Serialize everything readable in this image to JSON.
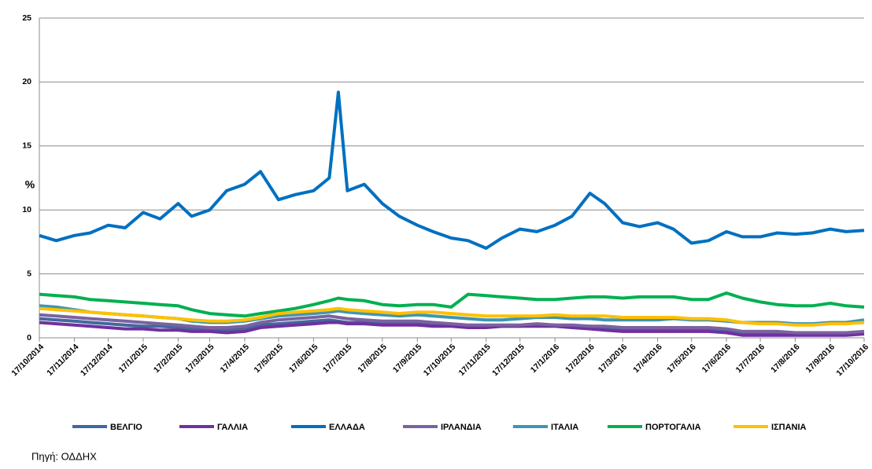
{
  "chart_data": {
    "type": "line",
    "y_label": "%",
    "source": "Πηγή:  ΟΔΔΗΧ",
    "x": [
      "17/10/2014",
      "1/11/2014",
      "17/11/2014",
      "1/12/2014",
      "17/12/2014",
      "1/1/2015",
      "17/1/2015",
      "1/2/2015",
      "17/2/2015",
      "1/3/2015",
      "17/3/2015",
      "1/4/2015",
      "17/4/2015",
      "1/5/2015",
      "17/5/2015",
      "1/6/2015",
      "17/6/2015",
      "1/7/2015",
      "9/7/2015",
      "17/7/2015",
      "1/8/2015",
      "17/8/2015",
      "1/9/2015",
      "17/9/2015",
      "1/10/2015",
      "17/10/2015",
      "1/11/2015",
      "17/11/2015",
      "1/12/2015",
      "17/12/2015",
      "1/1/2016",
      "17/1/2016",
      "1/2/2016",
      "17/2/2016",
      "1/3/2016",
      "17/3/2016",
      "1/4/2016",
      "17/4/2016",
      "1/5/2016",
      "17/5/2016",
      "1/6/2016",
      "17/6/2016",
      "1/7/2016",
      "17/7/2016",
      "1/8/2016",
      "17/8/2016",
      "1/9/2016",
      "17/9/2016",
      "1/10/2016",
      "17/10/2016"
    ],
    "series": [
      {
        "name": "ΒΕΛΓΙΟ",
        "color": "#41699c",
        "values": [
          1.5,
          1.4,
          1.3,
          1.2,
          1.1,
          1.0,
          0.9,
          0.9,
          0.8,
          0.7,
          0.6,
          0.6,
          0.7,
          1.0,
          1.1,
          1.2,
          1.3,
          1.4,
          1.3,
          1.2,
          1.2,
          1.1,
          1.1,
          1.1,
          1.0,
          1.0,
          0.9,
          0.9,
          0.9,
          0.9,
          1.0,
          1.0,
          0.9,
          0.9,
          0.8,
          0.7,
          0.7,
          0.7,
          0.7,
          0.6,
          0.6,
          0.5,
          0.3,
          0.3,
          0.3,
          0.3,
          0.3,
          0.3,
          0.3,
          0.4
        ]
      },
      {
        "name": "ΓΑΛΛΙΑ",
        "color": "#7030a0",
        "values": [
          1.2,
          1.1,
          1.0,
          0.9,
          0.8,
          0.7,
          0.7,
          0.6,
          0.6,
          0.5,
          0.5,
          0.4,
          0.5,
          0.8,
          0.9,
          1.0,
          1.1,
          1.2,
          1.2,
          1.1,
          1.1,
          1.0,
          1.0,
          1.0,
          0.9,
          0.9,
          0.8,
          0.8,
          0.9,
          0.9,
          0.9,
          0.9,
          0.8,
          0.7,
          0.6,
          0.5,
          0.5,
          0.5,
          0.5,
          0.5,
          0.5,
          0.4,
          0.2,
          0.2,
          0.2,
          0.2,
          0.2,
          0.2,
          0.2,
          0.3
        ]
      },
      {
        "name": "ΕΛΛΑΔΑ",
        "color": "#0070c0",
        "values": [
          8.0,
          7.6,
          8.0,
          8.2,
          8.8,
          8.6,
          9.8,
          9.3,
          10.5,
          9.5,
          10.0,
          11.5,
          12.0,
          13.0,
          10.8,
          11.2,
          11.5,
          12.5,
          19.2,
          11.5,
          12.0,
          10.5,
          9.5,
          8.8,
          8.3,
          7.8,
          7.6,
          7.0,
          7.8,
          8.5,
          8.3,
          8.8,
          9.5,
          11.3,
          10.5,
          9.0,
          8.7,
          9.0,
          8.5,
          7.4,
          7.6,
          8.3,
          7.9,
          7.9,
          8.2,
          8.1,
          8.2,
          8.5,
          8.3,
          8.4
        ]
      },
      {
        "name": "ΙΡΛΑΝΔΙΑ",
        "color": "#7b62a0",
        "values": [
          1.8,
          1.7,
          1.6,
          1.5,
          1.4,
          1.3,
          1.2,
          1.1,
          1.0,
          0.9,
          0.8,
          0.8,
          0.9,
          1.2,
          1.4,
          1.5,
          1.6,
          1.7,
          1.6,
          1.5,
          1.4,
          1.3,
          1.3,
          1.3,
          1.2,
          1.1,
          1.0,
          1.0,
          1.0,
          1.0,
          1.1,
          1.0,
          1.0,
          0.9,
          0.9,
          0.8,
          0.8,
          0.8,
          0.8,
          0.8,
          0.8,
          0.7,
          0.5,
          0.5,
          0.5,
          0.4,
          0.4,
          0.4,
          0.4,
          0.5
        ]
      },
      {
        "name": "ΙΤΑΛΙΑ",
        "color": "#3f96b0",
        "values": [
          2.5,
          2.4,
          2.2,
          2.0,
          1.9,
          1.8,
          1.7,
          1.6,
          1.5,
          1.3,
          1.2,
          1.2,
          1.3,
          1.5,
          1.7,
          1.8,
          1.9,
          2.0,
          2.1,
          2.0,
          1.9,
          1.8,
          1.7,
          1.8,
          1.7,
          1.6,
          1.5,
          1.4,
          1.4,
          1.5,
          1.6,
          1.6,
          1.5,
          1.5,
          1.4,
          1.4,
          1.4,
          1.4,
          1.5,
          1.4,
          1.4,
          1.3,
          1.2,
          1.2,
          1.2,
          1.1,
          1.1,
          1.2,
          1.2,
          1.4
        ]
      },
      {
        "name": "ΠΟΡΤΟΓΑΛΙΑ",
        "color": "#00b050",
        "values": [
          3.4,
          3.3,
          3.2,
          3.0,
          2.9,
          2.8,
          2.7,
          2.6,
          2.5,
          2.2,
          1.9,
          1.8,
          1.7,
          1.9,
          2.1,
          2.3,
          2.6,
          2.9,
          3.1,
          3.0,
          2.9,
          2.6,
          2.5,
          2.6,
          2.6,
          2.4,
          3.4,
          3.3,
          3.2,
          3.1,
          3.0,
          3.0,
          3.1,
          3.2,
          3.2,
          3.1,
          3.2,
          3.2,
          3.2,
          3.0,
          3.0,
          3.5,
          3.1,
          2.8,
          2.6,
          2.5,
          2.5,
          2.7,
          2.5,
          2.4
        ]
      },
      {
        "name": "ΙΣΠΑΝΙΑ",
        "color": "#ffc000",
        "values": [
          2.3,
          2.2,
          2.1,
          2.0,
          1.9,
          1.8,
          1.7,
          1.6,
          1.5,
          1.4,
          1.3,
          1.3,
          1.4,
          1.6,
          1.9,
          2.0,
          2.1,
          2.2,
          2.3,
          2.2,
          2.1,
          2.0,
          1.9,
          2.0,
          2.0,
          1.9,
          1.8,
          1.7,
          1.7,
          1.7,
          1.7,
          1.8,
          1.7,
          1.7,
          1.7,
          1.6,
          1.6,
          1.6,
          1.6,
          1.5,
          1.5,
          1.4,
          1.2,
          1.1,
          1.1,
          1.0,
          1.0,
          1.1,
          1.1,
          1.2
        ]
      }
    ],
    "xticks": [
      "17/10/2014",
      "17/11/2014",
      "17/12/2014",
      "17/1/2015",
      "17/2/2015",
      "17/3/2015",
      "17/4/2015",
      "17/5/2015",
      "17/6/2015",
      "17/7/2015",
      "17/8/2015",
      "17/9/2015",
      "17/10/2015",
      "17/11/2015",
      "17/12/2015",
      "17/1/2016",
      "17/2/2016",
      "17/3/2016",
      "17/4/2016",
      "17/5/2016",
      "17/6/2016",
      "17/7/2016",
      "17/8/2016",
      "17/9/2016",
      "17/10/2016"
    ],
    "xlim": [
      "17/10/2014",
      "17/10/2016"
    ],
    "ylim": [
      0,
      25
    ],
    "yticks": [
      0,
      5,
      10,
      15,
      20,
      25
    ],
    "grid": true,
    "legend": "bottom"
  }
}
